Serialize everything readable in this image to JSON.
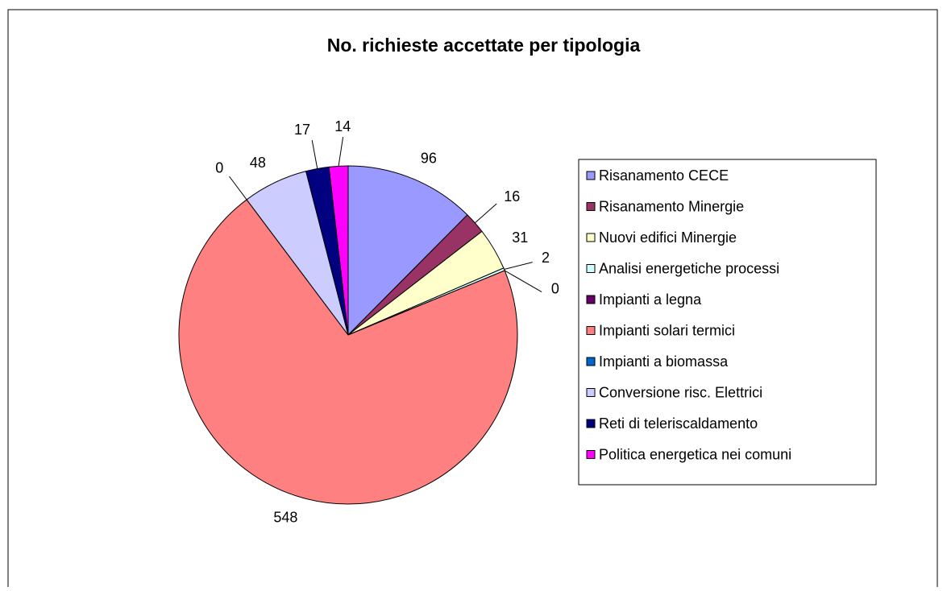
{
  "chart_data": {
    "type": "pie",
    "title": "No. richieste accettate per tipologia",
    "categories": [
      "Risanamento CECE",
      "Risanamento Minergie",
      "Nuovi edifici Minergie",
      "Analisi energetiche processi",
      "Impianti a legna",
      "Impianti solari termici",
      "Impianti a biomassa",
      "Conversione risc. Elettrici",
      "Reti di teleriscaldamento",
      "Politica energetica nei comuni"
    ],
    "values": [
      96,
      16,
      31,
      2,
      0,
      548,
      0,
      48,
      17,
      14
    ],
    "colors": [
      "#9999ff",
      "#993366",
      "#ffffcc",
      "#ccffff",
      "#660066",
      "#ff8080",
      "#0066cc",
      "#ccccff",
      "#000080",
      "#ff00ff"
    ],
    "legend": "right"
  }
}
